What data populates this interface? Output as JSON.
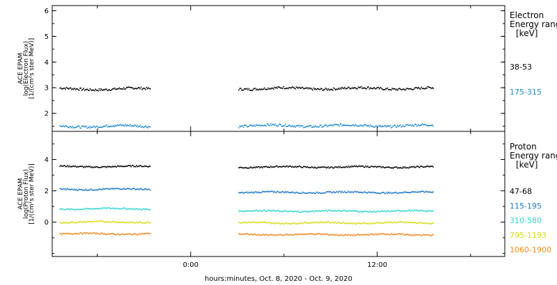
{
  "chart_data": [
    {
      "type": "scatter",
      "panel": "electron",
      "ylabel_lines": [
        "ACE EPAM",
        "log(Electron Flux)",
        "[1/(cm²s ster MeV)]"
      ],
      "ylim": [
        1.3,
        6.2
      ],
      "yticks": [
        2,
        3,
        4,
        5,
        6
      ],
      "legend": {
        "head": "Electron",
        "subhead": "Energy ranges",
        "unit": "[keV]"
      },
      "series": [
        {
          "name": "38-53",
          "color": "#000000",
          "segments": [
            [
              -8.4,
              -2.6,
              2.95
            ],
            [
              3.1,
              15.6,
              2.97
            ]
          ]
        },
        {
          "name": "175-315",
          "color": "#1e88d2",
          "segments": [
            [
              -8.4,
              -2.6,
              1.5
            ],
            [
              3.1,
              15.6,
              1.52
            ]
          ]
        }
      ]
    },
    {
      "type": "scatter",
      "panel": "proton",
      "ylabel_lines": [
        "ACE EPAM",
        "log(Proton Flux)",
        "[1/(cm²s ster MeV)]"
      ],
      "ylim": [
        -2.2,
        5.8
      ],
      "yticks": [
        0,
        2,
        4
      ],
      "legend": {
        "head": "Proton",
        "subhead": "Energy ranges",
        "unit": "[keV]"
      },
      "series": [
        {
          "name": "47-68",
          "color": "#000000",
          "segments": [
            [
              -8.4,
              -2.6,
              3.55
            ],
            [
              3.1,
              15.6,
              3.52
            ]
          ]
        },
        {
          "name": "115-195",
          "color": "#1e78c8",
          "segments": [
            [
              -8.4,
              -2.6,
              2.1
            ],
            [
              3.1,
              15.6,
              1.9
            ]
          ]
        },
        {
          "name": "310-580",
          "color": "#34d7cf",
          "segments": [
            [
              -8.4,
              -2.6,
              0.85
            ],
            [
              3.1,
              15.6,
              0.7
            ]
          ]
        },
        {
          "name": "795-1193",
          "color": "#d8dc18",
          "segments": [
            [
              -8.4,
              -2.6,
              0.0
            ],
            [
              3.1,
              15.6,
              -0.05
            ]
          ]
        },
        {
          "name": "1060-1900",
          "color": "#f08a1e",
          "segments": [
            [
              -8.4,
              -2.6,
              -0.75
            ],
            [
              3.1,
              15.6,
              -0.8
            ]
          ]
        }
      ]
    }
  ],
  "x_axis": {
    "xlim": [
      -8.9,
      20.2
    ],
    "major_ticks": [
      {
        "value": 0,
        "label": "0:00"
      },
      {
        "value": 12,
        "label": "12:00"
      }
    ],
    "minor_ticks": [
      -6,
      6,
      18
    ],
    "title": "hours:minutes, Oct.  8, 2020 - Oct.  9, 2020"
  }
}
